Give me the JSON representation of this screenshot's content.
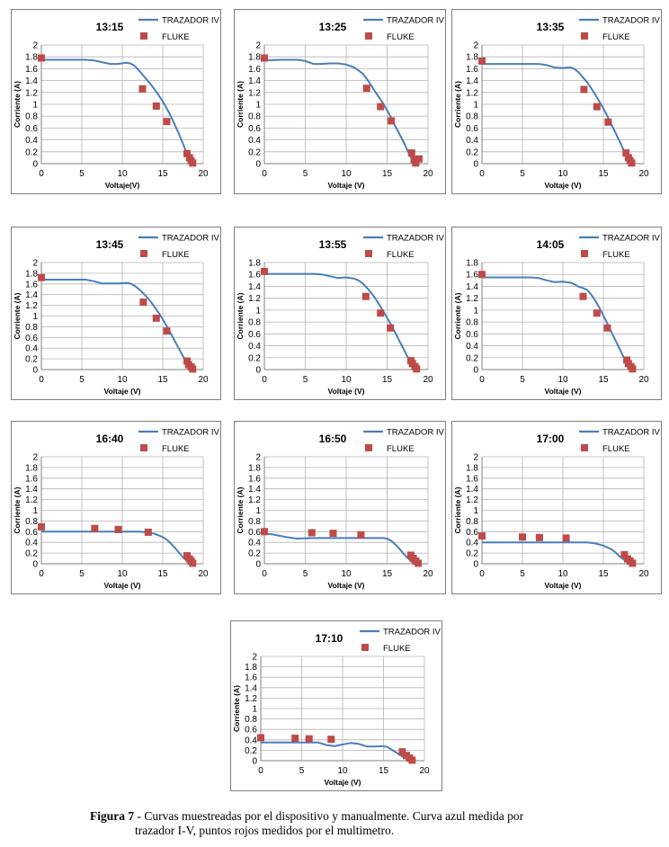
{
  "caption": {
    "label": "Figura 7",
    "line1": " - Curvas muestreadas por el dispositivo y manualmente. Curva azul medida por",
    "line2": "trazador I-V, puntos rojos medidos por el multimetro."
  },
  "colors": {
    "curve": "#4a7ebb",
    "points": "#be4b48",
    "grid": "#b4b4b4",
    "frame": "#7f7f7f"
  },
  "chart_data": [
    {
      "type": "line+scatter",
      "title": "13:15",
      "xlabel": "Voltaje(V)",
      "ylabel": "Corriente (A)",
      "xlim": [
        0,
        20
      ],
      "ylim": [
        0,
        2
      ],
      "xticks": [
        "0",
        "5",
        "10",
        "15",
        "20"
      ],
      "yticks": [
        "0",
        "0.2",
        "0.4",
        "0.6",
        "0.8",
        "1",
        "1.2",
        "1.4",
        "1.6",
        "1.8",
        "2"
      ],
      "legend": {
        "position": "top-right",
        "line_label": "TRAZADOR IV",
        "points_label": "FLUKE"
      },
      "series": [
        {
          "name": "TRAZADOR IV",
          "kind": "line",
          "x": [
            0,
            2,
            4,
            5.5,
            6.5,
            7.5,
            8.5,
            9.5,
            10.5,
            11,
            11.5,
            12,
            12.5,
            13,
            13.5,
            14,
            14.5,
            15,
            15.5,
            16,
            16.5,
            17,
            17.5,
            18,
            18.3
          ],
          "y": [
            1.75,
            1.75,
            1.75,
            1.75,
            1.74,
            1.71,
            1.68,
            1.68,
            1.7,
            1.69,
            1.65,
            1.58,
            1.5,
            1.42,
            1.34,
            1.25,
            1.15,
            1.05,
            0.93,
            0.8,
            0.65,
            0.5,
            0.34,
            0.16,
            0.03
          ]
        },
        {
          "name": "FLUKE",
          "kind": "scatter",
          "x": [
            0,
            12.5,
            14.2,
            15.5,
            18,
            18.3,
            18.5,
            18.7
          ],
          "y": [
            1.78,
            1.26,
            0.97,
            0.71,
            0.17,
            0.1,
            0.05,
            0.01
          ]
        }
      ]
    },
    {
      "type": "line+scatter",
      "title": "13:25",
      "xlabel": "Voltaje (V)",
      "ylabel": "Corriente (A)",
      "xlim": [
        0,
        20
      ],
      "ylim": [
        0,
        2
      ],
      "xticks": [
        "0",
        "5",
        "10",
        "15",
        "20"
      ],
      "yticks": [
        "0",
        "0.2",
        "0.4",
        "0.6",
        "0.8",
        "1",
        "1.2",
        "1.4",
        "1.6",
        "1.8",
        "2"
      ],
      "legend": {
        "position": "top-right",
        "line_label": "TRAZADOR IV",
        "points_label": "FLUKE"
      },
      "series": [
        {
          "name": "TRAZADOR IV",
          "kind": "line",
          "x": [
            0,
            2,
            4,
            5,
            6,
            7,
            8,
            9,
            10,
            11,
            12,
            12.5,
            13,
            13.5,
            14,
            14.5,
            15,
            15.5,
            16,
            16.5,
            17,
            17.5,
            18,
            18.3
          ],
          "y": [
            1.74,
            1.75,
            1.75,
            1.73,
            1.68,
            1.68,
            1.69,
            1.69,
            1.67,
            1.62,
            1.52,
            1.43,
            1.33,
            1.22,
            1.12,
            1.02,
            0.9,
            0.77,
            0.63,
            0.5,
            0.37,
            0.22,
            0.08,
            0.01
          ]
        },
        {
          "name": "FLUKE",
          "kind": "scatter",
          "x": [
            0,
            12.5,
            14.2,
            15.5,
            18,
            18.3,
            18.5,
            18.9
          ],
          "y": [
            1.78,
            1.27,
            0.96,
            0.72,
            0.18,
            0.06,
            0.01,
            0.08
          ]
        }
      ]
    },
    {
      "type": "line+scatter",
      "title": "13:35",
      "xlabel": "Voltaje (V)",
      "ylabel": "Corriente (A)",
      "xlim": [
        0,
        20
      ],
      "ylim": [
        0,
        2
      ],
      "xticks": [
        "0",
        "5",
        "10",
        "15",
        "20"
      ],
      "yticks": [
        "0",
        "0.2",
        "0.4",
        "0.6",
        "0.8",
        "1",
        "1.2",
        "1.4",
        "1.6",
        "1.8",
        "2"
      ],
      "legend": {
        "position": "top-right",
        "line_label": "TRAZADOR IV",
        "points_label": "FLUKE"
      },
      "series": [
        {
          "name": "TRAZADOR IV",
          "kind": "line",
          "x": [
            0,
            3,
            6,
            7,
            8,
            9,
            10,
            10.5,
            11,
            11.5,
            12,
            12.5,
            13,
            13.5,
            14,
            14.5,
            15,
            15.5,
            16,
            16.5,
            17,
            17.5,
            18,
            18.3
          ],
          "y": [
            1.68,
            1.68,
            1.68,
            1.68,
            1.66,
            1.62,
            1.61,
            1.62,
            1.62,
            1.59,
            1.53,
            1.45,
            1.37,
            1.27,
            1.16,
            1.05,
            0.93,
            0.8,
            0.66,
            0.52,
            0.38,
            0.23,
            0.09,
            0.01
          ]
        },
        {
          "name": "FLUKE",
          "kind": "scatter",
          "x": [
            0,
            12.6,
            14.2,
            15.6,
            17.8,
            18.1,
            18.3,
            18.5
          ],
          "y": [
            1.73,
            1.25,
            0.96,
            0.7,
            0.18,
            0.1,
            0.05,
            0.01
          ]
        }
      ]
    },
    {
      "type": "line+scatter",
      "title": "13:45",
      "xlabel": "Voltaje (V)",
      "ylabel": "Corriente (A)",
      "xlim": [
        0,
        20
      ],
      "ylim": [
        0,
        2
      ],
      "xticks": [
        "0",
        "5",
        "10",
        "15",
        "20"
      ],
      "yticks": [
        "0",
        "0.2",
        "0.4",
        "0.6",
        "0.8",
        "1",
        "1.2",
        "1.4",
        "1.6",
        "1.8",
        "2"
      ],
      "legend": {
        "position": "top-right",
        "line_label": "TRAZADOR IV",
        "points_label": "FLUKE"
      },
      "series": [
        {
          "name": "TRAZADOR IV",
          "kind": "line",
          "x": [
            0,
            2,
            4,
            5.5,
            6.5,
            7.5,
            8.5,
            9.5,
            10.5,
            11,
            11.5,
            12,
            12.5,
            13,
            13.5,
            14,
            14.5,
            15,
            15.5,
            16,
            16.5,
            17,
            17.5,
            18,
            18.3
          ],
          "y": [
            1.68,
            1.68,
            1.68,
            1.68,
            1.65,
            1.61,
            1.61,
            1.61,
            1.62,
            1.61,
            1.57,
            1.51,
            1.44,
            1.36,
            1.27,
            1.17,
            1.06,
            0.94,
            0.81,
            0.67,
            0.53,
            0.39,
            0.25,
            0.1,
            0.02
          ]
        },
        {
          "name": "FLUKE",
          "kind": "scatter",
          "x": [
            0,
            12.6,
            14.2,
            15.5,
            18,
            18.2,
            18.5,
            18.7
          ],
          "y": [
            1.72,
            1.26,
            0.96,
            0.72,
            0.16,
            0.09,
            0.05,
            0.01
          ]
        }
      ]
    },
    {
      "type": "line+scatter",
      "title": "13:55",
      "xlabel": "Voltaje (V)",
      "ylabel": "Corriente (A)",
      "xlim": [
        0,
        20
      ],
      "ylim": [
        0,
        1.8
      ],
      "xticks": [
        "0",
        "5",
        "10",
        "15",
        "20"
      ],
      "yticks": [
        "0",
        "0.2",
        "0.4",
        "0.6",
        "0.8",
        "1",
        "1.2",
        "1.4",
        "1.6",
        "1.8"
      ],
      "legend": {
        "position": "top-right",
        "line_label": "TRAZADOR IV",
        "points_label": "FLUKE"
      },
      "series": [
        {
          "name": "TRAZADOR IV",
          "kind": "line",
          "x": [
            0,
            2,
            4,
            6,
            7,
            8,
            9,
            10,
            11,
            11.5,
            12,
            12.5,
            13,
            13.5,
            14,
            14.5,
            15,
            15.5,
            16,
            16.5,
            17,
            17.5,
            18,
            18.3
          ],
          "y": [
            1.61,
            1.61,
            1.61,
            1.61,
            1.6,
            1.57,
            1.54,
            1.55,
            1.53,
            1.5,
            1.45,
            1.38,
            1.3,
            1.21,
            1.1,
            0.99,
            0.87,
            0.75,
            0.62,
            0.48,
            0.35,
            0.21,
            0.08,
            0.01
          ]
        },
        {
          "name": "FLUKE",
          "kind": "scatter",
          "x": [
            0,
            12.4,
            14.2,
            15.4,
            17.9,
            18.1,
            18.4,
            18.6
          ],
          "y": [
            1.65,
            1.23,
            0.95,
            0.7,
            0.15,
            0.1,
            0.05,
            0.01
          ]
        }
      ]
    },
    {
      "type": "line+scatter",
      "title": "14:05",
      "xlabel": "Voltaje (V)",
      "ylabel": "Corriente (A)",
      "xlim": [
        0,
        20
      ],
      "ylim": [
        0,
        1.8
      ],
      "xticks": [
        "0",
        "5",
        "10",
        "15",
        "20"
      ],
      "yticks": [
        "0",
        "0.2",
        "0.4",
        "0.6",
        "0.8",
        "1",
        "1.2",
        "1.4",
        "1.6",
        "1.8"
      ],
      "legend": {
        "position": "top-right",
        "line_label": "TRAZADOR IV",
        "points_label": "FLUKE"
      },
      "series": [
        {
          "name": "TRAZADOR IV",
          "kind": "line",
          "x": [
            0,
            2,
            4,
            6,
            7,
            8,
            9,
            10,
            11,
            11.5,
            12,
            12.5,
            13,
            13.5,
            14,
            14.5,
            15,
            15.5,
            16,
            16.5,
            17,
            17.5,
            18,
            18.3
          ],
          "y": [
            1.55,
            1.55,
            1.55,
            1.55,
            1.54,
            1.5,
            1.47,
            1.48,
            1.46,
            1.43,
            1.39,
            1.37,
            1.34,
            1.26,
            1.16,
            1.04,
            0.91,
            0.77,
            0.63,
            0.49,
            0.35,
            0.21,
            0.08,
            0.01
          ]
        },
        {
          "name": "FLUKE",
          "kind": "scatter",
          "x": [
            0,
            12.5,
            14.2,
            15.5,
            17.9,
            18.1,
            18.4,
            18.6
          ],
          "y": [
            1.6,
            1.23,
            0.95,
            0.7,
            0.16,
            0.1,
            0.05,
            0.01
          ]
        }
      ]
    },
    {
      "type": "line+scatter",
      "title": "16:40",
      "xlabel": "Voltaje (V)",
      "ylabel": "Corriente (A)",
      "xlim": [
        0,
        20
      ],
      "ylim": [
        0,
        2
      ],
      "xticks": [
        "0",
        "5",
        "10",
        "15",
        "20"
      ],
      "yticks": [
        "0",
        "0.2",
        "0.4",
        "0.6",
        "0.8",
        "1",
        "1.2",
        "1.4",
        "1.6",
        "1.8",
        "2"
      ],
      "legend": {
        "position": "top-right",
        "line_label": "TRAZADOR IV",
        "points_label": "FLUKE"
      },
      "series": [
        {
          "name": "TRAZADOR IV",
          "kind": "line",
          "x": [
            0,
            3,
            6,
            9,
            11,
            12,
            13,
            14,
            15,
            15.5,
            16,
            16.5,
            17,
            17.5,
            18,
            18.3
          ],
          "y": [
            0.6,
            0.6,
            0.6,
            0.6,
            0.6,
            0.6,
            0.59,
            0.56,
            0.5,
            0.45,
            0.38,
            0.3,
            0.21,
            0.12,
            0.05,
            0.01
          ]
        },
        {
          "name": "FLUKE",
          "kind": "scatter",
          "x": [
            0,
            6.6,
            9.5,
            13.2,
            18,
            18.3,
            18.5,
            18.7
          ],
          "y": [
            0.69,
            0.66,
            0.64,
            0.59,
            0.15,
            0.09,
            0.05,
            0.01
          ]
        }
      ]
    },
    {
      "type": "line+scatter",
      "title": "16:50",
      "xlabel": "Voltaje (V)",
      "ylabel": "Corriente (A)",
      "xlim": [
        0,
        20
      ],
      "ylim": [
        0,
        2
      ],
      "xticks": [
        "0",
        "5",
        "10",
        "15",
        "20"
      ],
      "yticks": [
        "0",
        "0.2",
        "0.4",
        "0.6",
        "0.8",
        "1",
        "1.2",
        "1.4",
        "1.6",
        "1.8",
        "2"
      ],
      "legend": {
        "position": "top-right",
        "line_label": "TRAZADOR IV",
        "points_label": "FLUKE"
      },
      "series": [
        {
          "name": "TRAZADOR IV",
          "kind": "line",
          "x": [
            0,
            1,
            2,
            3,
            4,
            6,
            8,
            10,
            12,
            13,
            14,
            14.5,
            15,
            15.5,
            16,
            16.5,
            17,
            17.5,
            18,
            18.3
          ],
          "y": [
            0.56,
            0.55,
            0.52,
            0.49,
            0.47,
            0.48,
            0.48,
            0.48,
            0.48,
            0.48,
            0.48,
            0.48,
            0.47,
            0.43,
            0.36,
            0.28,
            0.19,
            0.11,
            0.04,
            0.01
          ]
        },
        {
          "name": "FLUKE",
          "kind": "scatter",
          "x": [
            0,
            5.8,
            8.4,
            11.8,
            17.9,
            18.2,
            18.5,
            18.8
          ],
          "y": [
            0.6,
            0.58,
            0.57,
            0.54,
            0.16,
            0.1,
            0.05,
            0.01
          ]
        }
      ]
    },
    {
      "type": "line+scatter",
      "title": "17:00",
      "xlabel": "Voltaje (V)",
      "ylabel": "Corriente (A)",
      "xlim": [
        0,
        20
      ],
      "ylim": [
        0,
        2
      ],
      "xticks": [
        "0",
        "5",
        "10",
        "15",
        "20"
      ],
      "yticks": [
        "0",
        "0.2",
        "0.4",
        "0.6",
        "0.8",
        "1",
        "1.2",
        "1.4",
        "1.6",
        "1.8",
        "2"
      ],
      "legend": {
        "position": "top-right",
        "line_label": "TRAZADOR IV",
        "points_label": "FLUKE"
      },
      "series": [
        {
          "name": "TRAZADOR IV",
          "kind": "line",
          "x": [
            0,
            3,
            6,
            9,
            12,
            13,
            14,
            15,
            16,
            16.5,
            17,
            17.5,
            18,
            18.3
          ],
          "y": [
            0.4,
            0.4,
            0.4,
            0.4,
            0.4,
            0.4,
            0.38,
            0.34,
            0.27,
            0.21,
            0.14,
            0.08,
            0.03,
            0.01
          ]
        },
        {
          "name": "FLUKE",
          "kind": "scatter",
          "x": [
            0,
            5,
            7.1,
            10.4,
            17.6,
            18,
            18.3,
            18.6
          ],
          "y": [
            0.52,
            0.5,
            0.49,
            0.48,
            0.17,
            0.09,
            0.05,
            0.01
          ]
        }
      ]
    },
    {
      "type": "line+scatter",
      "title": "17:10",
      "xlabel": "Voltaje (V)",
      "ylabel": "Corriente (A)",
      "xlim": [
        0,
        20
      ],
      "ylim": [
        0,
        2
      ],
      "xticks": [
        "0",
        "5",
        "10",
        "15",
        "20"
      ],
      "yticks": [
        "0",
        "0.2",
        "0.4",
        "0.6",
        "0.8",
        "1",
        "1.2",
        "1.4",
        "1.6",
        "1.8",
        "2"
      ],
      "legend": {
        "position": "top-right",
        "line_label": "TRAZADOR IV",
        "points_label": "FLUKE"
      },
      "series": [
        {
          "name": "TRAZADOR IV",
          "kind": "line",
          "x": [
            0,
            2,
            4,
            6,
            7,
            8,
            9,
            10,
            11,
            12,
            13,
            14,
            15,
            15.5,
            16,
            16.5,
            17,
            17.5,
            18,
            18.3
          ],
          "y": [
            0.35,
            0.35,
            0.35,
            0.35,
            0.35,
            0.3,
            0.28,
            0.31,
            0.34,
            0.32,
            0.27,
            0.27,
            0.28,
            0.26,
            0.21,
            0.16,
            0.11,
            0.06,
            0.02,
            0.01
          ]
        },
        {
          "name": "FLUKE",
          "kind": "scatter",
          "x": [
            0,
            4.2,
            5.9,
            8.6,
            17.3,
            17.8,
            18.2,
            18.5
          ],
          "y": [
            0.44,
            0.43,
            0.42,
            0.41,
            0.17,
            0.1,
            0.05,
            0.01
          ]
        }
      ]
    }
  ]
}
